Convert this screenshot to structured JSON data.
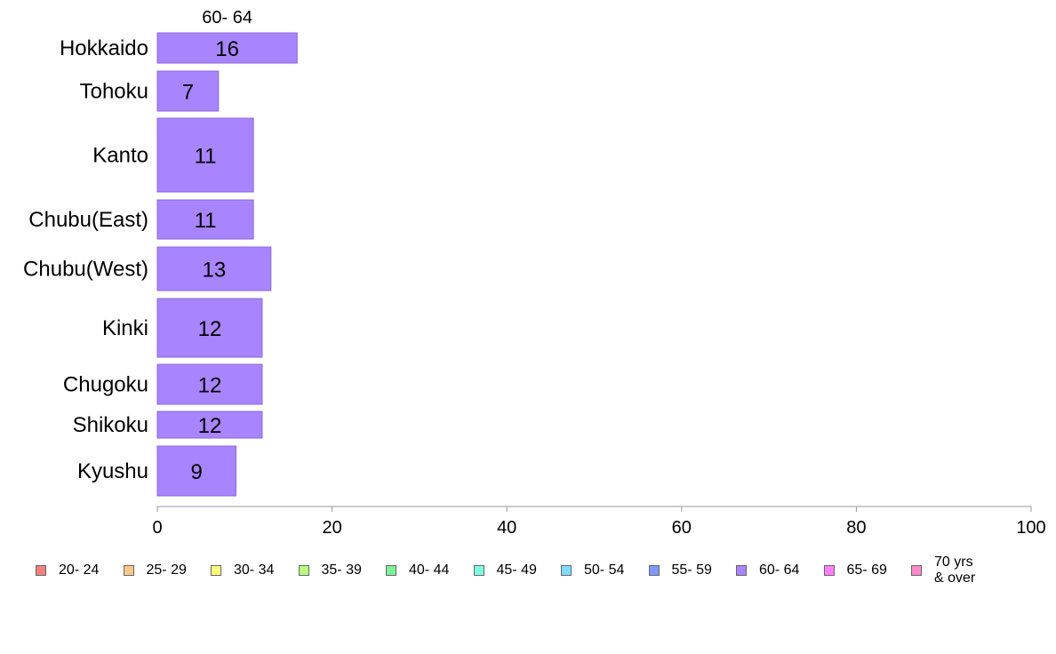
{
  "chart_data": {
    "type": "bar",
    "orientation": "horizontal",
    "stacked": true,
    "series_header": "60- 64",
    "categories": [
      "Hokkaido",
      "Tohoku",
      "Kanto",
      "Chubu(East)",
      "Chubu(West)",
      "Kinki",
      "Chugoku",
      "Shikoku",
      "Kyushu"
    ],
    "series": [
      {
        "name": "60- 64",
        "values": [
          16,
          7,
          11,
          11,
          13,
          12,
          12,
          12,
          9
        ],
        "color": "#a884ff"
      }
    ],
    "xlim": [
      0,
      100
    ],
    "xticks": [
      0,
      20,
      40,
      60,
      80,
      100
    ],
    "grid": false,
    "legend_position": "bottom"
  },
  "legend": [
    {
      "label": "20- 24",
      "color": "#f08080"
    },
    {
      "label": "25- 29",
      "color": "#ffc88a"
    },
    {
      "label": "30- 34",
      "color": "#ffff80"
    },
    {
      "label": "35- 39",
      "color": "#b8ff80"
    },
    {
      "label": "40- 44",
      "color": "#80f098"
    },
    {
      "label": "45- 49",
      "color": "#80ffe0"
    },
    {
      "label": "50- 54",
      "color": "#80dcff"
    },
    {
      "label": "55- 59",
      "color": "#8098ff"
    },
    {
      "label": "60- 64",
      "color": "#a884ff"
    },
    {
      "label": "65- 69",
      "color": "#ff80ff"
    },
    {
      "label": "70 yrs\n& over",
      "color": "#ff88cc"
    }
  ]
}
